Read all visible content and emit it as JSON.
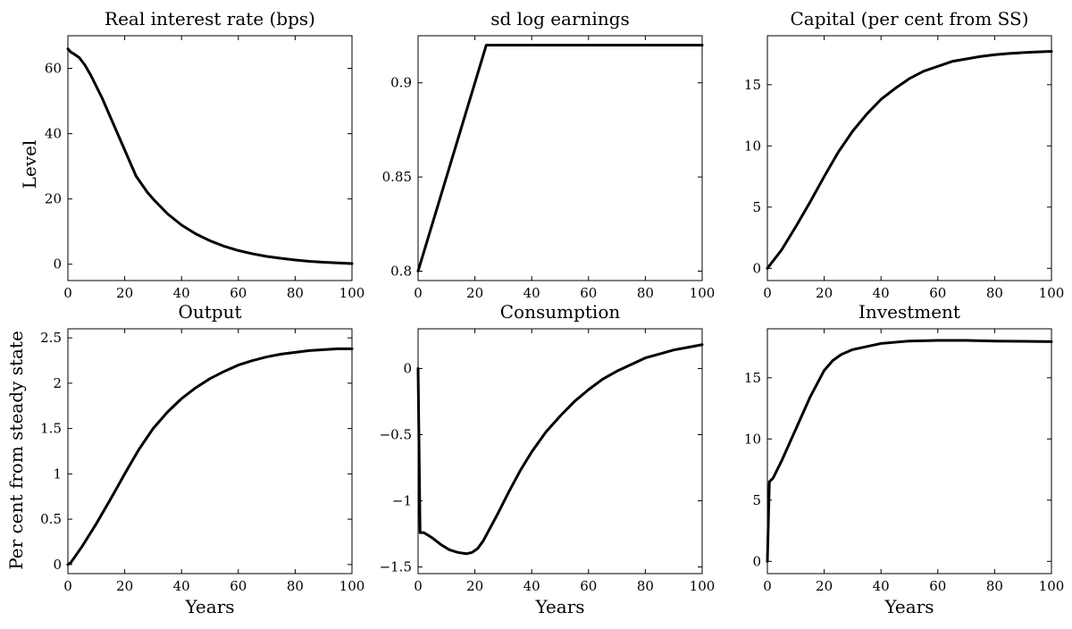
{
  "figure": {
    "row_labels": [
      "Level",
      "Per cent from steady state"
    ],
    "x_label": "Years"
  },
  "chart_data": [
    {
      "type": "line",
      "title": "Real interest rate (bps)",
      "xlim": [
        0,
        100
      ],
      "ylim": [
        -5,
        70
      ],
      "xticks": [
        0,
        20,
        40,
        60,
        80,
        100
      ],
      "yticks": [
        0,
        20,
        40,
        60
      ],
      "series": [
        {
          "x": [
            0,
            1,
            2,
            4,
            6,
            8,
            10,
            12,
            14,
            16,
            18,
            20,
            22,
            24,
            26,
            28,
            30,
            35,
            40,
            45,
            50,
            55,
            60,
            65,
            70,
            75,
            80,
            85,
            90,
            95,
            100
          ],
          "y": [
            66,
            65,
            64.5,
            63.3,
            61,
            58,
            54.5,
            51,
            47,
            43,
            39,
            35,
            31,
            27,
            24.5,
            22,
            20,
            15.5,
            12,
            9.3,
            7.2,
            5.5,
            4.2,
            3.2,
            2.4,
            1.8,
            1.3,
            0.9,
            0.6,
            0.4,
            0.2
          ]
        }
      ]
    },
    {
      "type": "line",
      "title": "sd log earnings",
      "xlim": [
        0,
        100
      ],
      "ylim": [
        0.795,
        0.925
      ],
      "xticks": [
        0,
        20,
        40,
        60,
        80,
        100
      ],
      "yticks": [
        0.8,
        0.85,
        0.9
      ],
      "ytick_labels": [
        "0.8",
        "0.85",
        "0.9"
      ],
      "series": [
        {
          "x": [
            0,
            24,
            100
          ],
          "y": [
            0.8,
            0.92,
            0.92
          ]
        }
      ]
    },
    {
      "type": "line",
      "title": "Capital (per cent from SS)",
      "xlim": [
        0,
        100
      ],
      "ylim": [
        -1,
        19
      ],
      "xticks": [
        0,
        20,
        40,
        60,
        80,
        100
      ],
      "yticks": [
        0,
        5,
        10,
        15
      ],
      "series": [
        {
          "x": [
            0,
            5,
            10,
            15,
            20,
            25,
            30,
            35,
            40,
            45,
            50,
            55,
            60,
            65,
            70,
            75,
            80,
            85,
            90,
            95,
            100
          ],
          "y": [
            0,
            1.5,
            3.4,
            5.4,
            7.5,
            9.5,
            11.2,
            12.6,
            13.8,
            14.7,
            15.5,
            16.1,
            16.5,
            16.9,
            17.1,
            17.3,
            17.45,
            17.55,
            17.62,
            17.68,
            17.72
          ]
        }
      ]
    },
    {
      "type": "line",
      "title": "Output",
      "xlim": [
        0,
        100
      ],
      "ylim": [
        -0.1,
        2.6
      ],
      "xticks": [
        0,
        20,
        40,
        60,
        80,
        100
      ],
      "yticks": [
        0,
        0.5,
        1,
        1.5,
        2,
        2.5
      ],
      "series": [
        {
          "x": [
            0,
            1,
            5,
            10,
            15,
            20,
            25,
            30,
            35,
            40,
            45,
            50,
            55,
            60,
            65,
            70,
            75,
            80,
            85,
            90,
            95,
            100
          ],
          "y": [
            0,
            0.02,
            0.2,
            0.45,
            0.72,
            1.0,
            1.27,
            1.5,
            1.68,
            1.83,
            1.95,
            2.05,
            2.13,
            2.2,
            2.25,
            2.29,
            2.32,
            2.34,
            2.36,
            2.37,
            2.38,
            2.38
          ]
        }
      ]
    },
    {
      "type": "line",
      "title": "Consumption",
      "xlim": [
        0,
        100
      ],
      "ylim": [
        -1.55,
        0.3
      ],
      "xticks": [
        0,
        20,
        40,
        60,
        80,
        100
      ],
      "yticks": [
        0,
        -0.5,
        -1,
        -1.5
      ],
      "ytick_labels": [
        "0",
        "−0.5",
        "−1",
        "−1.5"
      ],
      "series": [
        {
          "x": [
            0,
            0.7,
            2,
            5,
            8,
            11,
            14,
            17,
            19,
            21,
            23,
            25,
            28,
            32,
            36,
            40,
            45,
            50,
            55,
            60,
            65,
            70,
            75,
            80,
            85,
            90,
            95,
            100
          ],
          "y": [
            0,
            -1.24,
            -1.24,
            -1.28,
            -1.33,
            -1.37,
            -1.39,
            -1.4,
            -1.39,
            -1.36,
            -1.3,
            -1.22,
            -1.1,
            -0.93,
            -0.77,
            -0.63,
            -0.48,
            -0.36,
            -0.25,
            -0.16,
            -0.08,
            -0.02,
            0.03,
            0.08,
            0.11,
            0.14,
            0.16,
            0.18
          ]
        }
      ]
    },
    {
      "type": "line",
      "title": "Investment",
      "xlim": [
        0,
        100
      ],
      "ylim": [
        -1,
        19
      ],
      "xticks": [
        0,
        20,
        40,
        60,
        80,
        100
      ],
      "yticks": [
        0,
        5,
        10,
        15
      ],
      "series": [
        {
          "x": [
            0,
            0.7,
            2,
            5,
            10,
            15,
            20,
            23,
            26,
            30,
            40,
            50,
            60,
            70,
            80,
            90,
            100
          ],
          "y": [
            0,
            6.5,
            6.8,
            8.2,
            10.8,
            13.4,
            15.6,
            16.4,
            16.9,
            17.3,
            17.8,
            18.0,
            18.05,
            18.05,
            18.0,
            17.98,
            17.95
          ]
        }
      ]
    }
  ]
}
